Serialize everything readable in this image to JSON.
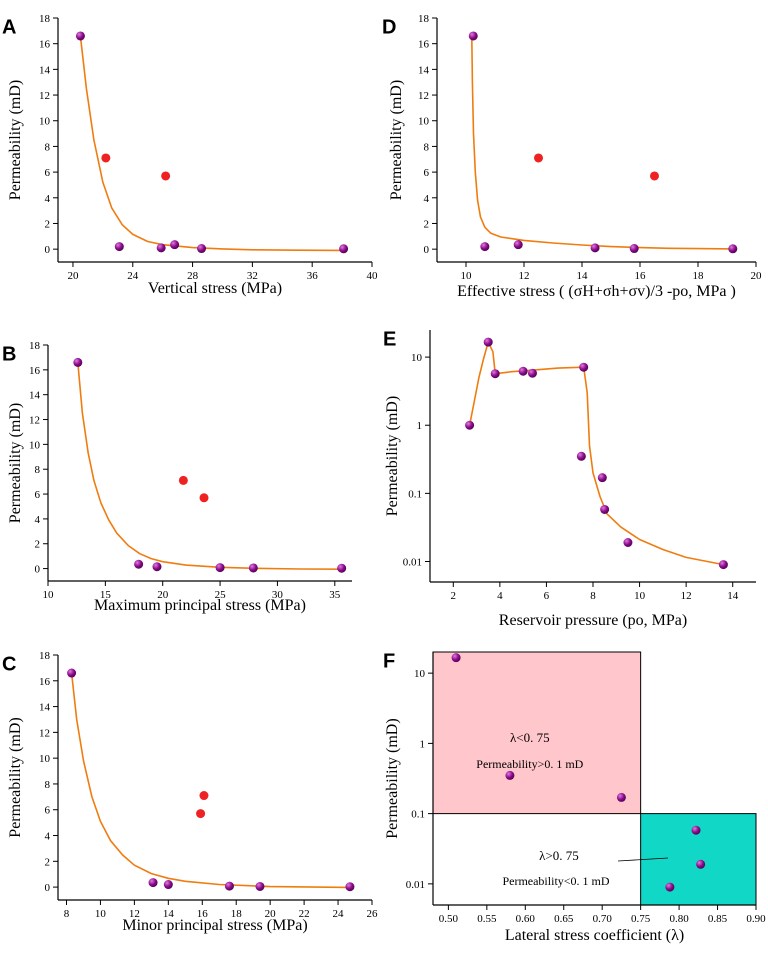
{
  "figure": {
    "panel_count": 6
  },
  "colors": {
    "fit_curve": "#f07c10",
    "dot_red": "#ee2222",
    "dot_purple": "#8a0b8a",
    "region_pink": "#ffc6cc",
    "region_cyan": "#11d8c6",
    "axis": "#000000"
  },
  "chart_data": [
    {
      "panel": "A",
      "type": "scatter",
      "yscale": "linear",
      "xlabel": "Vertical stress (MPa)",
      "ylabel": "Permeability (mD)",
      "xlim": [
        19,
        40
      ],
      "ylim": [
        -1,
        18
      ],
      "xticks": [
        20,
        24,
        28,
        32,
        36,
        40
      ],
      "yticks": [
        0,
        2,
        4,
        6,
        8,
        10,
        12,
        14,
        16,
        18
      ],
      "series": [
        {
          "name": "sample",
          "marker": "purple-sphere",
          "points": [
            [
              20.5,
              16.6
            ],
            [
              23.1,
              0.2
            ],
            [
              25.9,
              0.1
            ],
            [
              26.8,
              0.35
            ],
            [
              28.6,
              0.05
            ],
            [
              38.1,
              0.03
            ]
          ]
        },
        {
          "name": "outlier",
          "marker": "red-dot",
          "points": [
            [
              22.2,
              7.1
            ],
            [
              26.2,
              5.7
            ]
          ]
        },
        {
          "name": "fit",
          "style": "line",
          "points": [
            [
              20.5,
              16.6
            ],
            [
              20.9,
              12.5
            ],
            [
              21.4,
              8.5
            ],
            [
              22.0,
              5.2
            ],
            [
              22.6,
              3.2
            ],
            [
              23.3,
              1.9
            ],
            [
              24.0,
              1.15
            ],
            [
              25.0,
              0.6
            ],
            [
              26.0,
              0.35
            ],
            [
              28.0,
              0.12
            ],
            [
              30.0,
              0.02
            ],
            [
              32.0,
              -0.05
            ],
            [
              35.0,
              -0.08
            ],
            [
              38.1,
              -0.1
            ]
          ]
        }
      ]
    },
    {
      "panel": "B",
      "type": "scatter",
      "yscale": "linear",
      "xlabel": "Maximum principal stress (MPa)",
      "ylabel": "Permeability (mD)",
      "xlim": [
        10,
        36.5
      ],
      "ylim": [
        -1,
        18
      ],
      "xticks": [
        10,
        15,
        20,
        25,
        30,
        35
      ],
      "yticks": [
        0,
        2,
        4,
        6,
        8,
        10,
        12,
        14,
        16,
        18
      ],
      "series": [
        {
          "name": "sample",
          "marker": "purple-sphere",
          "points": [
            [
              12.6,
              16.6
            ],
            [
              17.9,
              0.35
            ],
            [
              19.5,
              0.15
            ],
            [
              25.0,
              0.08
            ],
            [
              27.9,
              0.05
            ],
            [
              35.6,
              0.03
            ]
          ]
        },
        {
          "name": "outlier",
          "marker": "red-dot",
          "points": [
            [
              21.8,
              7.1
            ],
            [
              23.6,
              5.7
            ]
          ]
        },
        {
          "name": "fit",
          "style": "line",
          "points": [
            [
              12.6,
              16.6
            ],
            [
              13.0,
              12.5
            ],
            [
              13.5,
              9.3
            ],
            [
              14.0,
              7.1
            ],
            [
              14.6,
              5.3
            ],
            [
              15.3,
              3.9
            ],
            [
              16.0,
              2.85
            ],
            [
              17.0,
              1.85
            ],
            [
              18.0,
              1.2
            ],
            [
              19.0,
              0.8
            ],
            [
              20.0,
              0.55
            ],
            [
              22.0,
              0.28
            ],
            [
              25.0,
              0.1
            ],
            [
              28.0,
              0.02
            ],
            [
              32.0,
              -0.03
            ],
            [
              35.6,
              -0.05
            ]
          ]
        }
      ]
    },
    {
      "panel": "C",
      "type": "scatter",
      "yscale": "linear",
      "xlabel": "Minor principal stress (MPa)",
      "ylabel": "Permeability (mD)",
      "xlim": [
        7.5,
        26
      ],
      "ylim": [
        -1,
        18
      ],
      "xticks": [
        8,
        10,
        12,
        14,
        16,
        18,
        20,
        22,
        24,
        26
      ],
      "yticks": [
        0,
        2,
        4,
        6,
        8,
        10,
        12,
        14,
        16,
        18
      ],
      "series": [
        {
          "name": "sample",
          "marker": "purple-sphere",
          "points": [
            [
              8.3,
              16.6
            ],
            [
              13.1,
              0.35
            ],
            [
              14.0,
              0.2
            ],
            [
              17.6,
              0.08
            ],
            [
              19.4,
              0.05
            ],
            [
              24.7,
              0.03
            ]
          ]
        },
        {
          "name": "outlier",
          "marker": "red-dot",
          "points": [
            [
              16.1,
              7.1
            ],
            [
              15.9,
              5.7
            ]
          ]
        },
        {
          "name": "fit",
          "style": "line",
          "points": [
            [
              8.3,
              16.6
            ],
            [
              8.6,
              13.0
            ],
            [
              9.0,
              9.8
            ],
            [
              9.5,
              7.0
            ],
            [
              10.0,
              5.1
            ],
            [
              10.6,
              3.6
            ],
            [
              11.3,
              2.5
            ],
            [
              12.0,
              1.7
            ],
            [
              13.0,
              1.05
            ],
            [
              14.0,
              0.68
            ],
            [
              15.0,
              0.45
            ],
            [
              17.0,
              0.2
            ],
            [
              20.0,
              0.04
            ],
            [
              24.7,
              -0.02
            ]
          ]
        }
      ]
    },
    {
      "panel": "D",
      "type": "scatter",
      "yscale": "linear",
      "xlabel": "Effective stress ( (σH+σh+σv)/3 -po, MPa )",
      "ylabel": "Permeability (mD)",
      "xlim": [
        9,
        20
      ],
      "ylim": [
        -1,
        18
      ],
      "xticks": [
        10,
        12,
        14,
        16,
        18,
        20
      ],
      "yticks": [
        0,
        2,
        4,
        6,
        8,
        10,
        12,
        14,
        16,
        18
      ],
      "series": [
        {
          "name": "sample",
          "marker": "purple-sphere",
          "points": [
            [
              10.25,
              16.6
            ],
            [
              10.65,
              0.2
            ],
            [
              11.8,
              0.35
            ],
            [
              14.45,
              0.1
            ],
            [
              15.8,
              0.05
            ],
            [
              19.2,
              0.03
            ]
          ]
        },
        {
          "name": "outlier",
          "marker": "red-dot",
          "points": [
            [
              12.5,
              7.1
            ],
            [
              16.5,
              5.7
            ]
          ]
        },
        {
          "name": "fit",
          "style": "line",
          "points": [
            [
              10.2,
              16.5
            ],
            [
              10.22,
              13.0
            ],
            [
              10.26,
              9.0
            ],
            [
              10.32,
              6.0
            ],
            [
              10.4,
              3.8
            ],
            [
              10.5,
              2.5
            ],
            [
              10.65,
              1.7
            ],
            [
              10.85,
              1.25
            ],
            [
              11.2,
              0.95
            ],
            [
              12.0,
              0.68
            ],
            [
              13.0,
              0.48
            ],
            [
              14.0,
              0.32
            ],
            [
              15.0,
              0.2
            ],
            [
              16.0,
              0.12
            ],
            [
              17.0,
              0.07
            ],
            [
              18.0,
              0.04
            ],
            [
              19.2,
              0.02
            ]
          ]
        }
      ]
    },
    {
      "panel": "E",
      "type": "scatter",
      "yscale": "log",
      "xlabel": "Reservoir pressure (po, MPa)",
      "ylabel": "Permeability (mD)",
      "xlim": [
        1,
        15
      ],
      "ylim": [
        0.005,
        25
      ],
      "xticks": [
        2,
        4,
        6,
        8,
        10,
        12,
        14
      ],
      "yticks": [
        0.01,
        0.1,
        1,
        10
      ],
      "ytick_labels": [
        "0.01",
        "0.1",
        "1",
        "10"
      ],
      "series": [
        {
          "name": "sample",
          "marker": "purple-sphere",
          "points": [
            [
              2.7,
              1.0
            ],
            [
              3.5,
              16.6
            ],
            [
              3.8,
              5.7
            ],
            [
              5.0,
              6.2
            ],
            [
              5.4,
              5.8
            ],
            [
              7.5,
              0.35
            ],
            [
              7.6,
              7.1
            ],
            [
              8.4,
              0.17
            ],
            [
              8.5,
              0.058
            ],
            [
              9.5,
              0.019
            ],
            [
              13.6,
              0.009
            ]
          ]
        },
        {
          "name": "fit",
          "style": "line",
          "points": [
            [
              2.7,
              1.0
            ],
            [
              2.9,
              2.2
            ],
            [
              3.1,
              5.0
            ],
            [
              3.3,
              9.5
            ],
            [
              3.5,
              16.6
            ],
            [
              3.7,
              12.0
            ],
            [
              3.8,
              5.7
            ],
            [
              4.5,
              6.1
            ],
            [
              5.5,
              6.5
            ],
            [
              6.5,
              6.9
            ],
            [
              7.6,
              7.1
            ],
            [
              7.75,
              3.0
            ],
            [
              7.85,
              0.5
            ],
            [
              8.0,
              0.2
            ],
            [
              8.3,
              0.09
            ],
            [
              8.6,
              0.05
            ],
            [
              9.2,
              0.032
            ],
            [
              10.0,
              0.021
            ],
            [
              11.0,
              0.015
            ],
            [
              12.0,
              0.0115
            ],
            [
              13.6,
              0.009
            ]
          ]
        }
      ]
    },
    {
      "panel": "F",
      "type": "scatter",
      "yscale": "log",
      "xlabel": "Lateral stress coefficient (λ)",
      "ylabel": "Permeability (mD)",
      "xlim": [
        0.48,
        0.9
      ],
      "ylim": [
        0.005,
        20
      ],
      "xticks": [
        0.5,
        0.55,
        0.6,
        0.65,
        0.7,
        0.75,
        0.8,
        0.85,
        0.9
      ],
      "xtick_labels": [
        "0.50",
        "0.55",
        "0.60",
        "0.65",
        "0.70",
        "0.75",
        "0.80",
        "0.85",
        "0.90"
      ],
      "yticks": [
        0.01,
        0.1,
        1,
        10
      ],
      "ytick_labels": [
        "0.01",
        "0.1",
        "1",
        "10"
      ],
      "regions": [
        {
          "name": "high-permeability",
          "x": [
            0.48,
            0.75
          ],
          "y": [
            0.1,
            20
          ],
          "color": "pink",
          "annotation": [
            "λ<0. 75",
            "Permeability>0. 1 mD"
          ]
        },
        {
          "name": "low-permeability",
          "x": [
            0.75,
            0.9
          ],
          "y": [
            0.005,
            0.1
          ],
          "color": "cyan",
          "annotation": [
            "λ>0. 75",
            "Permeability<0. 1 mD"
          ]
        }
      ],
      "series": [
        {
          "name": "sample",
          "marker": "purple-sphere",
          "points": [
            [
              0.51,
              16.6
            ],
            [
              0.58,
              0.35
            ],
            [
              0.725,
              0.17
            ],
            [
              0.822,
              0.058
            ],
            [
              0.828,
              0.019
            ],
            [
              0.788,
              0.009
            ]
          ]
        }
      ]
    }
  ]
}
